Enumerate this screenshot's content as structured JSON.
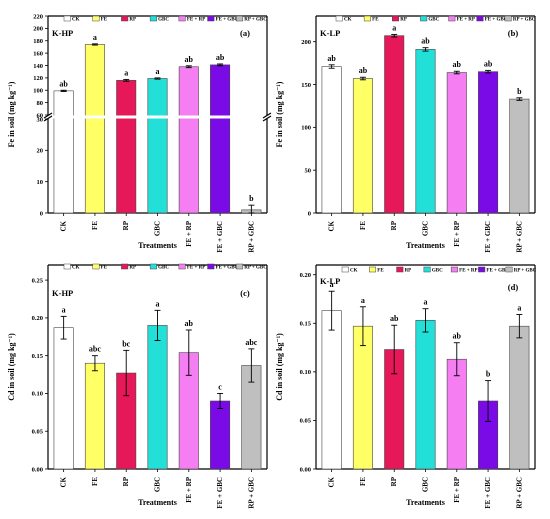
{
  "chart_data": [
    {
      "type": "bar",
      "panel_letter": "(a)",
      "site_label": "K-HP",
      "title": "",
      "xlabel": "Treatments",
      "ylabel": "Fe in soil (mg kg⁻¹)",
      "categories": [
        "CK",
        "FE",
        "RP",
        "GBC",
        "FE + RP",
        "FE + GBC",
        "RP + GBC"
      ],
      "colors": [
        "#ffffff",
        "#ffff66",
        "#e6185a",
        "#22e0d8",
        "#f47ef2",
        "#7a0be6",
        "#bfbfbf"
      ],
      "values": [
        99,
        174,
        116,
        119,
        138,
        141,
        1
      ],
      "errors": [
        1,
        1,
        1.5,
        1,
        1.5,
        1.5,
        1.5
      ],
      "sig_letters": [
        "ab",
        "a",
        "a",
        "a",
        "ab",
        "ab",
        "b"
      ],
      "axis_break": {
        "lower": [
          0,
          30
        ],
        "upper": [
          60,
          220
        ]
      },
      "yticks_lower": [
        0,
        10,
        20,
        30
      ],
      "yticks_upper": [
        60,
        80,
        100,
        120,
        140,
        160,
        180,
        200,
        220
      ],
      "legend": [
        "CK",
        "FE",
        "RP",
        "GBC",
        "FE + RP",
        "FE + GBC",
        "RP + GBC"
      ]
    },
    {
      "type": "bar",
      "panel_letter": "(b)",
      "site_label": "K-LP",
      "title": "",
      "xlabel": "Treatments",
      "ylabel": "Fe in soil (mg kg⁻¹)",
      "categories": [
        "CK",
        "FE",
        "RP",
        "GBC",
        "FE + RP",
        "FE + GBC",
        "RP + GBC"
      ],
      "colors": [
        "#ffffff",
        "#ffff66",
        "#e6185a",
        "#22e0d8",
        "#f47ef2",
        "#7a0be6",
        "#bfbfbf"
      ],
      "values": [
        171,
        157,
        207,
        191,
        164,
        165,
        133
      ],
      "errors": [
        2,
        1.5,
        1.5,
        2,
        1.5,
        1.5,
        1.5
      ],
      "sig_letters": [
        "ab",
        "ab",
        "a",
        "ab",
        "ab",
        "ab",
        "b"
      ],
      "ylim": [
        0,
        230
      ],
      "yticks": [
        0,
        50,
        100,
        150,
        200
      ],
      "legend": [
        "CK",
        "FE",
        "RP",
        "GBC",
        "FE + RP",
        "FE + GBC",
        "RP + GBC"
      ]
    },
    {
      "type": "bar",
      "panel_letter": "(c)",
      "site_label": "K-HP",
      "title": "",
      "xlabel": "Treatments",
      "ylabel": "Cd in soil (mg kg⁻¹)",
      "categories": [
        "CK",
        "FE",
        "RP",
        "GBC",
        "FE + RP",
        "FE + GBC",
        "RP + GBC"
      ],
      "colors": [
        "#ffffff",
        "#ffff66",
        "#e6185a",
        "#22e0d8",
        "#f47ef2",
        "#7a0be6",
        "#bfbfbf"
      ],
      "values": [
        0.187,
        0.14,
        0.127,
        0.19,
        0.154,
        0.09,
        0.137
      ],
      "errors": [
        0.015,
        0.01,
        0.03,
        0.02,
        0.03,
        0.01,
        0.022
      ],
      "sig_letters": [
        "a",
        "abc",
        "bc",
        "a",
        "ab",
        "c",
        "abc"
      ],
      "ylim": [
        0,
        0.27
      ],
      "yticks": [
        "0.00",
        "0.05",
        "0.10",
        "0.15",
        "0.20",
        "0.25"
      ],
      "legend": [
        "CK",
        "FE",
        "RP",
        "GBC",
        "FE + RP",
        "FE + GBC",
        "RP + GBC"
      ]
    },
    {
      "type": "bar",
      "panel_letter": "(d)",
      "site_label": "K-LP",
      "title": "",
      "xlabel": "Treatments",
      "ylabel": "Cd in soil (mg kg⁻¹)",
      "categories": [
        "CK",
        "FE",
        "RP",
        "GBC",
        "FE + RP",
        "FE + GBC",
        "RP + GBC"
      ],
      "colors": [
        "#ffffff",
        "#ffff66",
        "#e6185a",
        "#22e0d8",
        "#f47ef2",
        "#7a0be6",
        "#bfbfbf"
      ],
      "values": [
        0.163,
        0.147,
        0.123,
        0.153,
        0.113,
        0.07,
        0.147
      ],
      "errors": [
        0.02,
        0.02,
        0.025,
        0.012,
        0.017,
        0.021,
        0.012
      ],
      "sig_letters": [
        "a",
        "a",
        "ab",
        "a",
        "ab",
        "b",
        "a"
      ],
      "ylim": [
        0,
        0.21
      ],
      "yticks": [
        "0.00",
        "0.05",
        "0.10",
        "0.15",
        "0.20"
      ],
      "legend": [
        "CK",
        "FE",
        "RP",
        "GBC",
        "FE + RP",
        "FE + GBC",
        "RP + GBC"
      ]
    }
  ]
}
